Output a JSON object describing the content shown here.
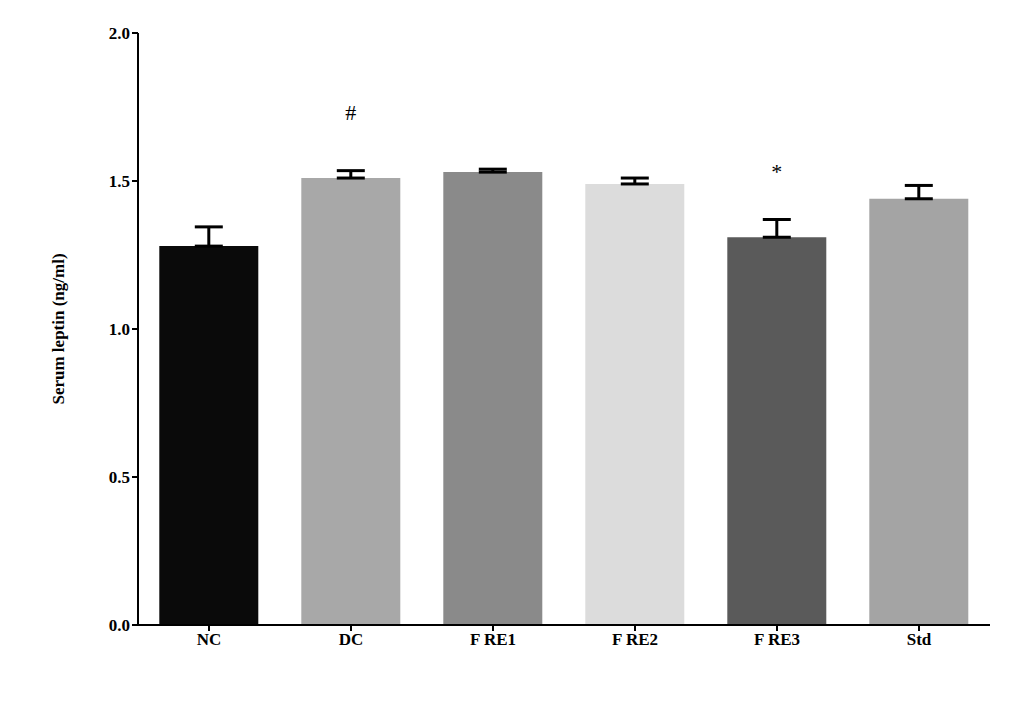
{
  "chart_data": {
    "type": "bar",
    "y_label": "Serum leptin (ng/ml)",
    "categories": [
      "NC",
      "DC",
      "F RE1",
      "F RE2",
      "F RE3",
      "Std"
    ],
    "values": [
      1.28,
      1.51,
      1.53,
      1.49,
      1.31,
      1.44
    ],
    "errors": [
      0.065,
      0.025,
      0.01,
      0.02,
      0.06,
      0.045
    ],
    "colors": [
      "#0a0a0a",
      "#a8a8a8",
      "#8a8a8a",
      "#dcdcdc",
      "#5a5a5a",
      "#a4a4a4"
    ],
    "annotations": [
      {
        "category": "DC",
        "text": "#"
      },
      {
        "category": "F RE3",
        "text": "*"
      }
    ],
    "ylim": [
      0,
      2
    ],
    "yticks": [
      {
        "value": 0,
        "label": "0.0"
      },
      {
        "value": 0.5,
        "label": "0.5"
      },
      {
        "value": 1,
        "label": "1.0"
      },
      {
        "value": 1.5,
        "label": "1.5"
      },
      {
        "value": 2,
        "label": "2.0"
      }
    ],
    "grid": false
  }
}
